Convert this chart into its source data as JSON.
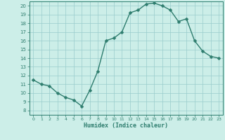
{
  "x": [
    0,
    1,
    2,
    3,
    4,
    5,
    6,
    7,
    8,
    9,
    10,
    11,
    12,
    13,
    14,
    15,
    16,
    17,
    18,
    19,
    20,
    21,
    22,
    23
  ],
  "y": [
    11.5,
    11.0,
    10.8,
    10.0,
    9.5,
    9.2,
    8.5,
    10.3,
    12.5,
    16.0,
    16.3,
    17.0,
    19.2,
    19.5,
    20.2,
    20.3,
    20.0,
    19.5,
    18.2,
    18.5,
    16.0,
    14.8,
    14.2,
    14.0
  ],
  "line_color": "#2e7d6e",
  "marker": "D",
  "marker_size": 2.5,
  "bg_color": "#cceee8",
  "grid_color": "#99cccc",
  "xlabel": "Humidex (Indice chaleur)",
  "xlim": [
    -0.5,
    23.5
  ],
  "ylim": [
    7.5,
    20.5
  ],
  "yticks": [
    8,
    9,
    10,
    11,
    12,
    13,
    14,
    15,
    16,
    17,
    18,
    19,
    20
  ],
  "xticks": [
    0,
    1,
    2,
    3,
    4,
    5,
    6,
    7,
    8,
    9,
    10,
    11,
    12,
    13,
    14,
    15,
    16,
    17,
    18,
    19,
    20,
    21,
    22,
    23
  ]
}
